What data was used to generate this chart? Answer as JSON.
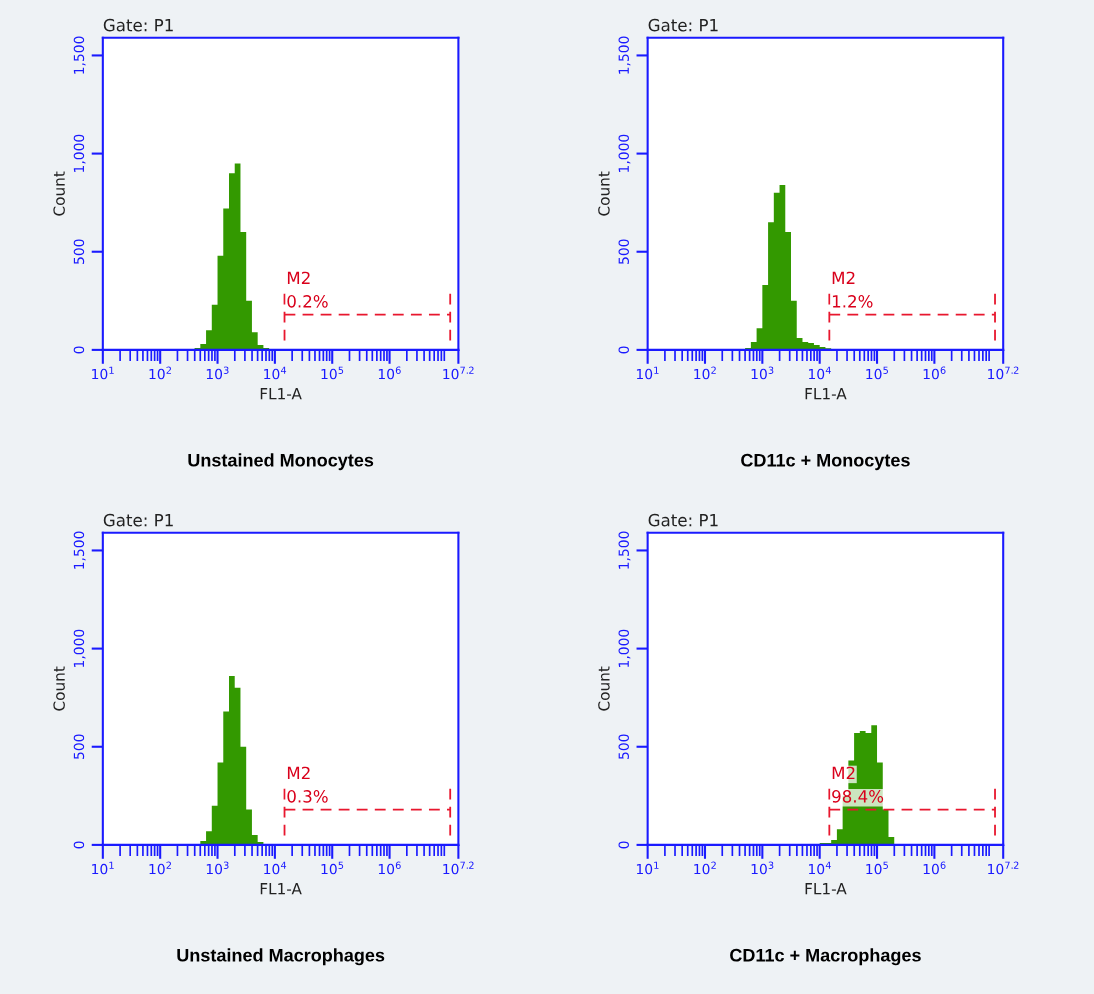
{
  "chart_data": [
    {
      "type": "histogram",
      "title": "Unstained Monocytes",
      "subtitle": "Gate: P1",
      "xlabel": "FL1-A",
      "ylabel": "Count",
      "log": "x",
      "bins": [
        316,
        398,
        501,
        631,
        794,
        1000,
        1259,
        1585,
        1995,
        2512,
        3162,
        3981,
        5012,
        6310,
        7943,
        10000
      ],
      "values": [
        5,
        10,
        30,
        100,
        230,
        480,
        720,
        900,
        950,
        600,
        250,
        90,
        25,
        10,
        5
      ],
      "color": "#339900",
      "xlim": [
        10,
        15848932
      ],
      "xticks": [
        {
          "value": 10,
          "label": "10$^{1}$"
        },
        {
          "value": 100,
          "label": "10$^{2}$"
        },
        {
          "value": 1000,
          "label": "10$^{3}$"
        },
        {
          "value": 10000,
          "label": "10$^{4}$"
        },
        {
          "value": 100000,
          "label": "10$^{5}$"
        },
        {
          "value": 1000000,
          "label": "10$^{6}$"
        },
        {
          "value": 15848932,
          "label": "10$^{7.2}$"
        }
      ],
      "ylim": [
        0,
        1590
      ],
      "yticks": [
        0,
        {
          "value": 500,
          "label": "500"
        },
        {
          "value": 1000,
          "label": "1,000"
        },
        {
          "value": 1500,
          "label": "1,500"
        }
      ],
      "annotations": [
        "M2",
        "0.2%"
      ],
      "grid": false,
      "legend": false
    },
    {
      "type": "histogram",
      "title": "CD11c + Monocytes",
      "subtitle": "Gate: P1",
      "xlabel": "FL1-A",
      "ylabel": "Count",
      "log": "x",
      "bins": [
        501,
        631,
        794,
        1000,
        1259,
        1585,
        1995,
        2512,
        3162,
        3981,
        5012,
        6310,
        7943,
        10000,
        12589,
        15849,
        19953,
        25119,
        31623,
        39811
      ],
      "values": [
        10,
        40,
        110,
        330,
        650,
        800,
        840,
        600,
        250,
        60,
        40,
        35,
        25,
        15,
        8,
        3,
        2,
        2,
        2
      ],
      "color": "#339900",
      "xlim": [
        10,
        15848932
      ],
      "xticks": [
        {
          "value": 10,
          "label": "10$^{1}$"
        },
        {
          "value": 100,
          "label": "10$^{2}$"
        },
        {
          "value": 1000,
          "label": "10$^{3}$"
        },
        {
          "value": 10000,
          "label": "10$^{4}$"
        },
        {
          "value": 100000,
          "label": "10$^{5}$"
        },
        {
          "value": 1000000,
          "label": "10$^{6}$"
        },
        {
          "value": 15848932,
          "label": "10$^{7.2}$"
        }
      ],
      "ylim": [
        0,
        1590
      ],
      "yticks": [
        0,
        {
          "value": 500,
          "label": "500"
        },
        {
          "value": 1000,
          "label": "1,000"
        },
        {
          "value": 1500,
          "label": "1,500"
        }
      ],
      "annotations": [
        "M2",
        "1.2%"
      ],
      "grid": false,
      "legend": false
    },
    {
      "type": "histogram",
      "title": "Unstained Macrophages",
      "subtitle": "Gate: P1",
      "xlabel": "FL1-A",
      "ylabel": "Count",
      "log": "x",
      "bins": [
        398,
        501,
        631,
        794,
        1000,
        1259,
        1585,
        1995,
        2512,
        3162,
        3981,
        5012,
        6310,
        7943
      ],
      "values": [
        5,
        20,
        70,
        200,
        420,
        680,
        860,
        800,
        500,
        180,
        50,
        15,
        5
      ],
      "color": "#339900",
      "xlim": [
        10,
        15848932
      ],
      "xticks": [
        {
          "value": 10,
          "label": "10$^{1}$"
        },
        {
          "value": 100,
          "label": "10$^{2}$"
        },
        {
          "value": 1000,
          "label": "10$^{3}$"
        },
        {
          "value": 10000,
          "label": "10$^{4}$"
        },
        {
          "value": 100000,
          "label": "10$^{5}$"
        },
        {
          "value": 1000000,
          "label": "10$^{6}$"
        },
        {
          "value": 15848932,
          "label": "10$^{7.2}$"
        }
      ],
      "ylim": [
        0,
        1590
      ],
      "yticks": [
        0,
        {
          "value": 500,
          "label": "500"
        },
        {
          "value": 1000,
          "label": "1,000"
        },
        {
          "value": 1500,
          "label": "1,500"
        }
      ],
      "annotations": [
        "M2",
        "0.3%"
      ],
      "grid": false,
      "legend": false
    },
    {
      "type": "histogram",
      "title": "CD11c + Macrophages",
      "subtitle": "Gate: P1",
      "xlabel": "FL1-A",
      "ylabel": "Count",
      "log": "x",
      "bins": [
        7943,
        10000,
        12589,
        15849,
        19953,
        25119,
        31623,
        39811,
        50119,
        63096,
        79433,
        100000,
        125893,
        158489,
        199526,
        251189
      ],
      "values": [
        5,
        10,
        10,
        25,
        80,
        250,
        430,
        570,
        580,
        570,
        610,
        420,
        180,
        40,
        5
      ],
      "color": "#339900",
      "xlim": [
        10,
        15848932
      ],
      "xticks": [
        {
          "value": 10,
          "label": "10$^{1}$"
        },
        {
          "value": 100,
          "label": "10$^{2}$"
        },
        {
          "value": 1000,
          "label": "10$^{3}$"
        },
        {
          "value": 10000,
          "label": "10$^{4}$"
        },
        {
          "value": 100000,
          "label": "10$^{5}$"
        },
        {
          "value": 1000000,
          "label": "10$^{6}$"
        },
        {
          "value": 15848932,
          "label": "10$^{7.2}$"
        }
      ],
      "ylim": [
        0,
        1590
      ],
      "yticks": [
        0,
        {
          "value": 500,
          "label": "500"
        },
        {
          "value": 1000,
          "label": "1,000"
        },
        {
          "value": 1500,
          "label": "1,500"
        }
      ],
      "annotations": [
        "M2",
        "98.4%"
      ],
      "grid": false,
      "legend": false
    }
  ]
}
